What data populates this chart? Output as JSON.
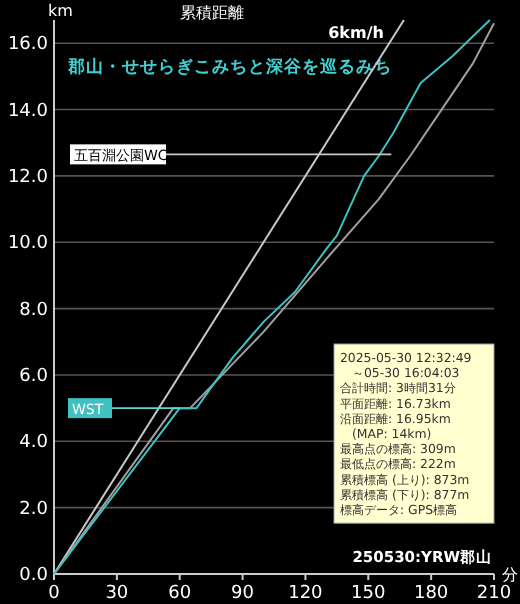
{
  "chart_data": {
    "type": "line",
    "title": "郡山・せせらぎこみちと深谷を巡るみち",
    "subtitle": "累積距離",
    "ylabel": "km",
    "xlabel": "分",
    "xlim": [
      0,
      210
    ],
    "xticks": [
      0,
      30,
      60,
      90,
      120,
      150,
      180,
      210
    ],
    "ylim": [
      0,
      16.7
    ],
    "yticks": [
      {
        "value": 0,
        "label": "0.0"
      },
      {
        "value": 2,
        "label": "2.0"
      },
      {
        "value": 4,
        "label": "4.0"
      },
      {
        "value": 6,
        "label": "6.0"
      },
      {
        "value": 8,
        "label": "8.0"
      },
      {
        "value": 10,
        "label": "10.0"
      },
      {
        "value": 12,
        "label": "12.0"
      },
      {
        "value": 14,
        "label": "14.0"
      },
      {
        "value": 16,
        "label": "16.0"
      }
    ],
    "grid": "y",
    "series": [
      {
        "name": "6km/h",
        "color": "#c8c8c8",
        "x": [
          0,
          167
        ],
        "values": [
          0,
          16.7
        ]
      },
      {
        "color": "#a0a0a0",
        "x": [
          0,
          57,
          65,
          100,
          130,
          155,
          170,
          185,
          200,
          210
        ],
        "values": [
          0,
          5.0,
          5.0,
          7.3,
          9.5,
          11.3,
          12.6,
          14.0,
          15.4,
          16.6
        ]
      },
      {
        "color": "#40c0c0",
        "x": [
          0,
          60,
          68,
          85,
          100,
          115,
          130,
          135,
          148,
          155,
          162,
          175,
          190,
          208
        ],
        "values": [
          0,
          5.0,
          5.0,
          6.5,
          7.6,
          8.5,
          9.8,
          10.2,
          12.0,
          12.6,
          13.3,
          14.8,
          15.6,
          16.7
        ]
      }
    ],
    "annotations": [
      {
        "text": "WST",
        "x": 60,
        "y": 5.0
      },
      {
        "text": "五百淵公園WC",
        "x": 161,
        "y": 12.65
      },
      "2025-05-30 12:32:49",
      "　～05-30 16:04:03",
      "合計時間: 3時間31分",
      "平面距離: 16.73km",
      "沿面距離: 16.95km",
      "　(MAP: 14km)",
      "最高点の標高: 309m",
      "最低点の標高: 222m",
      "累積標高 (上り): 873m",
      "累積標高 (下り): 877m",
      "標高データ: GPS標高",
      "250530:YRW郡山"
    ]
  }
}
